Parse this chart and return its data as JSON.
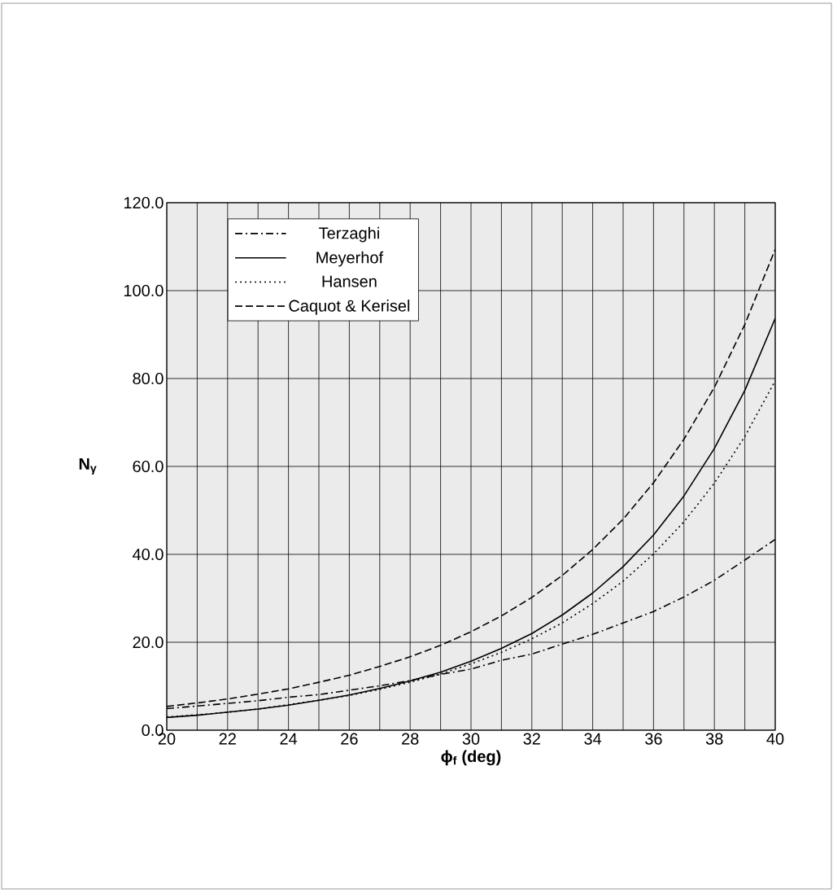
{
  "chart_data": {
    "type": "line",
    "xlabel": "ϕ$_{f}$ (deg)",
    "ylabel": "N$_{γ}$",
    "x": [
      20,
      21,
      22,
      23,
      24,
      25,
      26,
      27,
      28,
      29,
      30,
      31,
      32,
      33,
      34,
      35,
      36,
      37,
      38,
      39,
      40
    ],
    "xlim": [
      20,
      40
    ],
    "xticks": [
      20,
      22,
      24,
      26,
      28,
      30,
      32,
      34,
      36,
      38,
      40
    ],
    "ylim": [
      0,
      120
    ],
    "yticks": [
      {
        "value": 0,
        "label": "0.0"
      },
      {
        "value": 20,
        "label": "20.0"
      },
      {
        "value": 40,
        "label": "40.0"
      },
      {
        "value": 60,
        "label": "60.0"
      },
      {
        "value": 80,
        "label": "80.0"
      },
      {
        "value": 100,
        "label": "100.0"
      },
      {
        "value": 120,
        "label": "120.0"
      }
    ],
    "grid": true,
    "legend": "top left",
    "marker": "none",
    "series": [
      {
        "name": "Terzaghi",
        "color": "#000000",
        "line_style": "dashdot",
        "values": [
          4.9,
          5.5,
          6.1,
          6.7,
          7.5,
          8.1,
          9.1,
          10.1,
          11.3,
          12.7,
          13.9,
          15.9,
          17.3,
          19.6,
          21.8,
          24.4,
          27.0,
          30.3,
          34.1,
          38.7,
          43.4
        ]
      },
      {
        "name": "Meyerhof",
        "color": "#000000",
        "line_style": "solid",
        "values": [
          2.9,
          3.4,
          4.1,
          4.8,
          5.7,
          6.8,
          8.0,
          9.5,
          11.2,
          13.2,
          15.7,
          18.6,
          22.0,
          26.2,
          31.2,
          37.2,
          44.4,
          53.3,
          64.1,
          77.3,
          93.7
        ]
      },
      {
        "name": "Hansen",
        "color": "#000000",
        "line_style": "dotted",
        "values": [
          3.0,
          3.5,
          4.1,
          4.8,
          5.8,
          6.8,
          7.9,
          9.3,
          10.9,
          12.8,
          15.1,
          17.7,
          20.8,
          24.4,
          28.8,
          33.9,
          40.1,
          47.4,
          56.2,
          66.8,
          79.5
        ]
      },
      {
        "name": "Caquot & Kerisel",
        "color": "#000000",
        "line_style": "dashed",
        "values": [
          5.4,
          6.2,
          7.1,
          8.2,
          9.4,
          10.9,
          12.5,
          14.5,
          16.7,
          19.3,
          22.4,
          26.0,
          30.2,
          35.2,
          41.1,
          48.0,
          56.3,
          66.2,
          78.0,
          92.3,
          109.4
        ]
      }
    ]
  }
}
